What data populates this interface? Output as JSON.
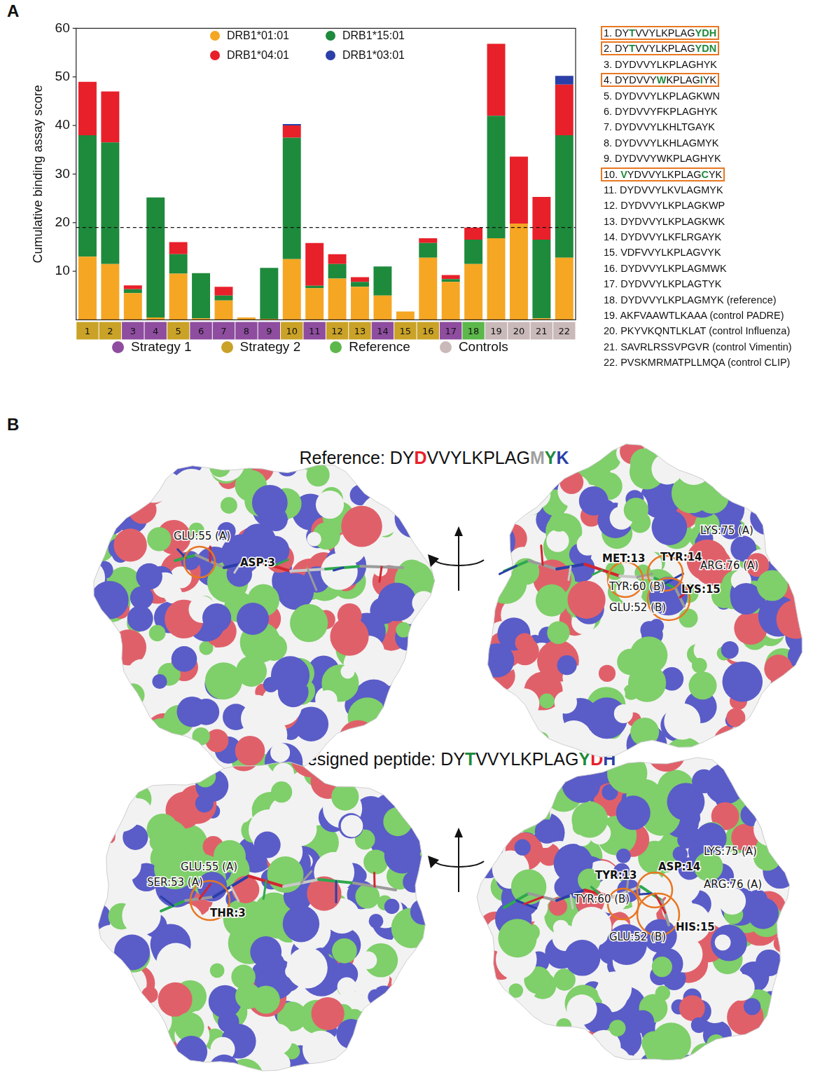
{
  "chart_data": {
    "type": "bar",
    "stacked": true,
    "grid": false,
    "y_label": "Cumulative binding assay score",
    "categories": [
      "1",
      "2",
      "3",
      "4",
      "5",
      "6",
      "7",
      "8",
      "9",
      "10",
      "11",
      "12",
      "13",
      "14",
      "15",
      "16",
      "17",
      "18",
      "19",
      "20",
      "21",
      "22"
    ],
    "series": [
      {
        "name": "DRB1*01:01",
        "color": "#f5a623",
        "values": [
          13,
          11.5,
          5.5,
          0.5,
          9.5,
          0.3,
          4,
          0.5,
          0.2,
          12.5,
          6.5,
          8.5,
          6.8,
          5,
          1.7,
          12.8,
          7.8,
          11.5,
          16.8,
          19.8,
          0.3,
          12.8
        ]
      },
      {
        "name": "DRB1*15:01",
        "color": "#1e8a3c",
        "values": [
          25,
          25,
          0.8,
          24.7,
          4,
          9.3,
          1,
          0,
          10.5,
          25,
          0.5,
          3,
          1,
          6,
          0,
          3,
          0.6,
          5,
          25.2,
          0,
          16.2,
          25.2
        ]
      },
      {
        "name": "DRB1*04:01",
        "color": "#e8202a",
        "values": [
          11,
          10.5,
          0.8,
          0,
          2.5,
          0,
          1.8,
          0,
          0,
          2.5,
          8.8,
          2,
          1,
          0,
          0,
          1,
          0.8,
          2.5,
          14.8,
          13.8,
          8.8,
          10.4
        ]
      },
      {
        "name": "DRB1*03:01",
        "color": "#2b3fa8",
        "values": [
          0,
          0,
          0,
          0,
          0,
          0,
          0,
          0,
          0,
          0.3,
          0,
          0,
          0,
          0,
          0,
          0,
          0,
          0,
          0,
          0,
          0,
          1.8
        ]
      }
    ],
    "ylim": [
      0,
      60
    ],
    "yticks": [
      10,
      20,
      30,
      40,
      50,
      60
    ],
    "reference_line": {
      "value": 19,
      "line_style": "dashed"
    },
    "groups": [
      {
        "name": "Strategy 1",
        "color": "#8e4d9f"
      },
      {
        "name": "Strategy 2",
        "color": "#c9a227"
      },
      {
        "name": "Reference",
        "color": "#5cb84a"
      },
      {
        "name": "Controls",
        "color": "#c9b9b9"
      }
    ],
    "category_group": [
      "Strategy 2",
      "Strategy 2",
      "Strategy 1",
      "Strategy 1",
      "Strategy 2",
      "Strategy 1",
      "Strategy 1",
      "Strategy 1",
      "Strategy 1",
      "Strategy 2",
      "Strategy 1",
      "Strategy 2",
      "Strategy 2",
      "Strategy 1",
      "Strategy 2",
      "Strategy 2",
      "Strategy 1",
      "Reference",
      "Controls",
      "Controls",
      "Controls",
      "Controls"
    ]
  },
  "panel_labels": [
    "A",
    "B"
  ],
  "peptide_list": [
    {
      "boxed": true,
      "parts": [
        {
          "text": "1. DY"
        },
        {
          "text": "T",
          "color": "#1e8a3c"
        },
        {
          "text": "VVYLKPLAG"
        },
        {
          "text": "YDH",
          "color": "#1e8a3c"
        }
      ]
    },
    {
      "boxed": true,
      "parts": [
        {
          "text": "2. DY"
        },
        {
          "text": "T",
          "color": "#1e8a3c"
        },
        {
          "text": "VVYLKPLAG"
        },
        {
          "text": "YDN",
          "color": "#1e8a3c"
        }
      ]
    },
    {
      "boxed": false,
      "parts": [
        {
          "text": "3. DYDVVYLKPLAGHYK"
        }
      ]
    },
    {
      "boxed": true,
      "parts": [
        {
          "text": "4. DYDVVY"
        },
        {
          "text": "W",
          "color": "#1e8a3c"
        },
        {
          "text": "KPLAG"
        },
        {
          "text": "I",
          "color": "#1e8a3c"
        },
        {
          "text": "YK"
        }
      ]
    },
    {
      "boxed": false,
      "parts": [
        {
          "text": "5. DYDVVYLKPLAGKWN"
        }
      ]
    },
    {
      "boxed": false,
      "parts": [
        {
          "text": "6. DYDVVYFKPLAGHYK"
        }
      ]
    },
    {
      "boxed": false,
      "parts": [
        {
          "text": "7. DYDVVYLKHLTGAYK"
        }
      ]
    },
    {
      "boxed": false,
      "parts": [
        {
          "text": "8. DYDVVYLKHLAGMYK"
        }
      ]
    },
    {
      "boxed": false,
      "parts": [
        {
          "text": "9. DYDVVYWKPLAGHYK"
        }
      ]
    },
    {
      "boxed": true,
      "parts": [
        {
          "text": "10. "
        },
        {
          "text": "V",
          "color": "#1e8a3c"
        },
        {
          "text": "YDVVYLKPLAG"
        },
        {
          "text": "C",
          "color": "#1e8a3c"
        },
        {
          "text": "YK"
        }
      ]
    },
    {
      "boxed": false,
      "parts": [
        {
          "text": "11. DYDVVYLKVLAGMYK"
        }
      ]
    },
    {
      "boxed": false,
      "parts": [
        {
          "text": "12. DYDVVYLKPLAGKWP"
        }
      ]
    },
    {
      "boxed": false,
      "parts": [
        {
          "text": "13. DYDVVYLKPLAGKWK"
        }
      ]
    },
    {
      "boxed": false,
      "parts": [
        {
          "text": "14. DYDVVYLKFLRGAYK"
        }
      ]
    },
    {
      "boxed": false,
      "parts": [
        {
          "text": "15. VDFVVYLKPLAGVYK"
        }
      ]
    },
    {
      "boxed": false,
      "parts": [
        {
          "text": "16. DYDVVYLKPLAGMWK"
        }
      ]
    },
    {
      "boxed": false,
      "parts": [
        {
          "text": "17. DYDVVYLKPLAGTYK"
        }
      ]
    },
    {
      "boxed": false,
      "parts": [
        {
          "text": "18. DYDVVYLKPLAGMYK (reference)"
        }
      ]
    },
    {
      "boxed": false,
      "parts": [
        {
          "text": "19. AKFVAAWTLKAAA  (control PADRE)"
        }
      ]
    },
    {
      "boxed": false,
      "parts": [
        {
          "text": "20. PKYVKQNTLKLAT  (control Influenza)"
        }
      ]
    },
    {
      "boxed": false,
      "parts": [
        {
          "text": "21. SAVRLRSSVPGVR  (control Vimentin)"
        }
      ]
    },
    {
      "boxed": false,
      "parts": [
        {
          "text": "22. PVSKMRMATPLLMQA  (control CLIP)"
        }
      ]
    }
  ],
  "panel_b": {
    "reference_title": [
      {
        "text": "Reference: DY"
      },
      {
        "text": "D",
        "color": "#e8202a"
      },
      {
        "text": "VVYLKPLAG"
      },
      {
        "text": "M",
        "color": "#a0a0a0"
      },
      {
        "text": "Y",
        "color": "#1e8a3c"
      },
      {
        "text": "K",
        "color": "#2b3fa8"
      }
    ],
    "designed_title": [
      {
        "text": "Designed peptide: DY"
      },
      {
        "text": "T",
        "color": "#1e8a3c"
      },
      {
        "text": "VVYLKPLAG"
      },
      {
        "text": "Y",
        "color": "#1e8a3c"
      },
      {
        "text": "D",
        "color": "#e8202a"
      },
      {
        "text": "H",
        "color": "#2b3fa8"
      }
    ],
    "views": [
      {
        "labels": [
          {
            "text": "GLU:55 (A)",
            "bold": false
          },
          {
            "text": "ASP:3",
            "bold": true
          }
        ]
      },
      {
        "labels": [
          {
            "text": "LYS:75 (A)",
            "bold": false
          },
          {
            "text": "MET:13",
            "bold": true
          },
          {
            "text": "TYR:14",
            "bold": true
          },
          {
            "text": "ARG:76 (A)",
            "bold": false
          },
          {
            "text": "LYS:15",
            "bold": true
          },
          {
            "text": "TYR:60 (B)",
            "bold": false
          },
          {
            "text": "GLU:52 (B)",
            "bold": false
          }
        ]
      },
      {
        "labels": [
          {
            "text": "GLU:55 (A)",
            "bold": false
          },
          {
            "text": "SER:53 (A)",
            "bold": false
          },
          {
            "text": "THR:3",
            "bold": true
          }
        ]
      },
      {
        "labels": [
          {
            "text": "TYR:13",
            "bold": true
          },
          {
            "text": "LYS:75 (A)",
            "bold": false
          },
          {
            "text": "ASP:14",
            "bold": true
          },
          {
            "text": "ARG:76 (A)",
            "bold": false
          },
          {
            "text": "HIS:15",
            "bold": true
          },
          {
            "text": "TYR:60 (B)",
            "bold": false
          },
          {
            "text": "GLU:52 (B)",
            "bold": false
          }
        ]
      }
    ]
  }
}
